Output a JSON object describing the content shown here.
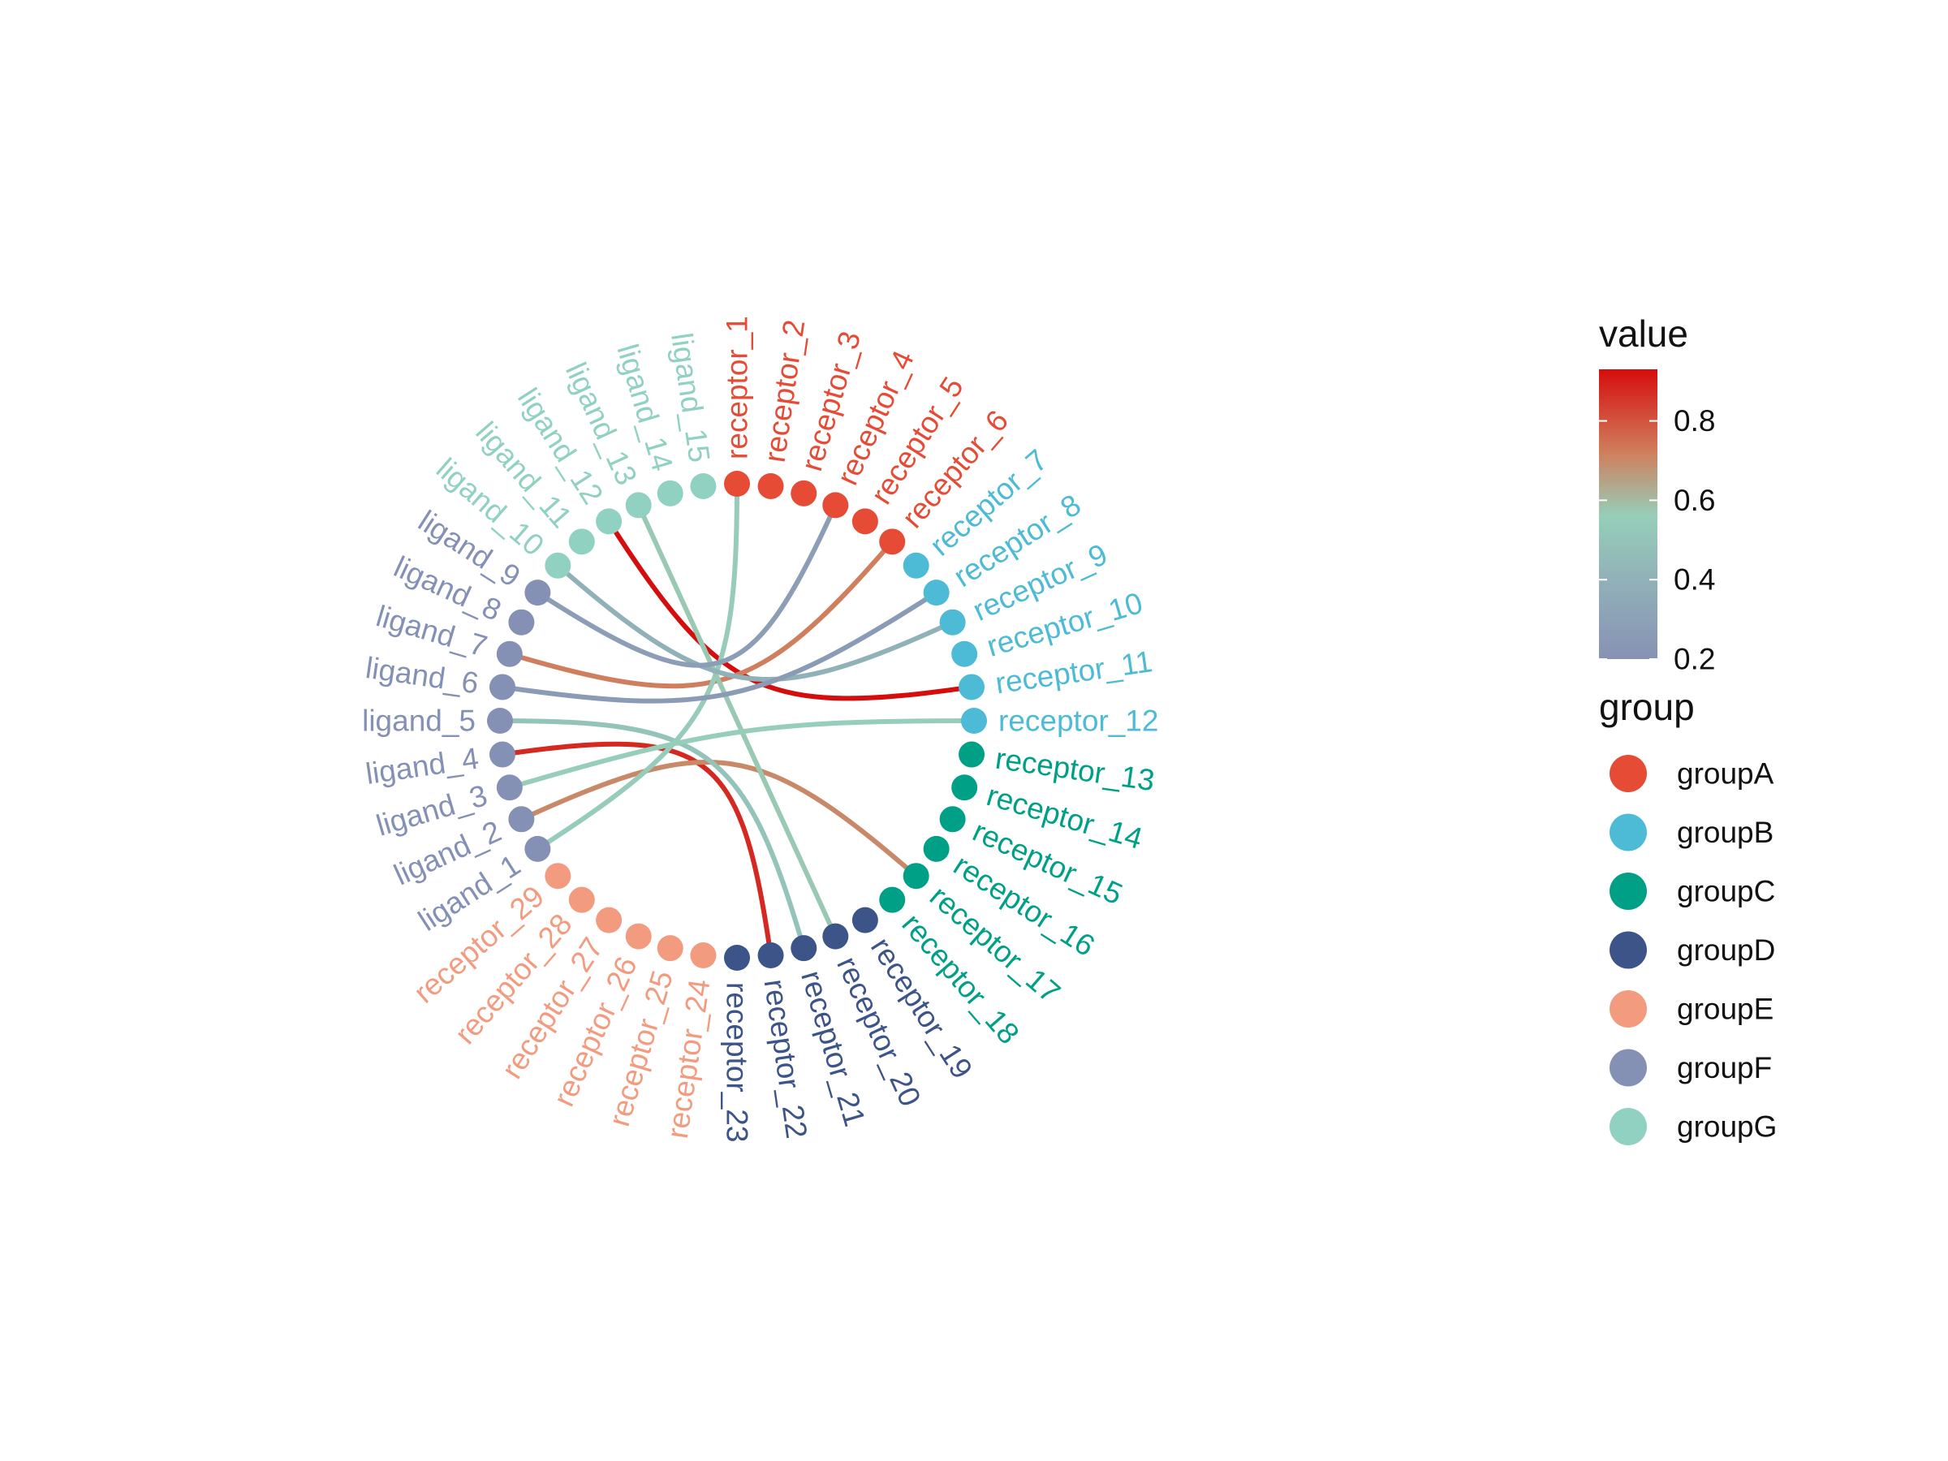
{
  "chart_data": {
    "type": "network",
    "layout": "circular",
    "nodes": [
      {
        "name": "receptor_1",
        "group": "groupA"
      },
      {
        "name": "receptor_2",
        "group": "groupA"
      },
      {
        "name": "receptor_3",
        "group": "groupA"
      },
      {
        "name": "receptor_4",
        "group": "groupA"
      },
      {
        "name": "receptor_5",
        "group": "groupA"
      },
      {
        "name": "receptor_6",
        "group": "groupA"
      },
      {
        "name": "receptor_7",
        "group": "groupB"
      },
      {
        "name": "receptor_8",
        "group": "groupB"
      },
      {
        "name": "receptor_9",
        "group": "groupB"
      },
      {
        "name": "receptor_10",
        "group": "groupB"
      },
      {
        "name": "receptor_11",
        "group": "groupB"
      },
      {
        "name": "receptor_12",
        "group": "groupB"
      },
      {
        "name": "receptor_13",
        "group": "groupC"
      },
      {
        "name": "receptor_14",
        "group": "groupC"
      },
      {
        "name": "receptor_15",
        "group": "groupC"
      },
      {
        "name": "receptor_16",
        "group": "groupC"
      },
      {
        "name": "receptor_17",
        "group": "groupC"
      },
      {
        "name": "receptor_18",
        "group": "groupC"
      },
      {
        "name": "receptor_19",
        "group": "groupD"
      },
      {
        "name": "receptor_20",
        "group": "groupD"
      },
      {
        "name": "receptor_21",
        "group": "groupD"
      },
      {
        "name": "receptor_22",
        "group": "groupD"
      },
      {
        "name": "receptor_23",
        "group": "groupD"
      },
      {
        "name": "receptor_24",
        "group": "groupE"
      },
      {
        "name": "receptor_25",
        "group": "groupE"
      },
      {
        "name": "receptor_26",
        "group": "groupE"
      },
      {
        "name": "receptor_27",
        "group": "groupE"
      },
      {
        "name": "receptor_28",
        "group": "groupE"
      },
      {
        "name": "receptor_29",
        "group": "groupE"
      },
      {
        "name": "ligand_1",
        "group": "groupF"
      },
      {
        "name": "ligand_2",
        "group": "groupF"
      },
      {
        "name": "ligand_3",
        "group": "groupF"
      },
      {
        "name": "ligand_4",
        "group": "groupF"
      },
      {
        "name": "ligand_5",
        "group": "groupF"
      },
      {
        "name": "ligand_6",
        "group": "groupF"
      },
      {
        "name": "ligand_7",
        "group": "groupF"
      },
      {
        "name": "ligand_8",
        "group": "groupF"
      },
      {
        "name": "ligand_9",
        "group": "groupF"
      },
      {
        "name": "ligand_10",
        "group": "groupG"
      },
      {
        "name": "ligand_11",
        "group": "groupG"
      },
      {
        "name": "ligand_12",
        "group": "groupG"
      },
      {
        "name": "ligand_13",
        "group": "groupG"
      },
      {
        "name": "ligand_14",
        "group": "groupG"
      },
      {
        "name": "ligand_15",
        "group": "groupG"
      }
    ],
    "edges": [
      {
        "from": "ligand_12",
        "to": "receptor_11",
        "value": 0.93
      },
      {
        "from": "ligand_4",
        "to": "receptor_22",
        "value": 0.88
      },
      {
        "from": "ligand_7",
        "to": "receptor_6",
        "value": 0.72
      },
      {
        "from": "ligand_2",
        "to": "receptor_17",
        "value": 0.7
      },
      {
        "from": "ligand_5",
        "to": "receptor_21",
        "value": 0.5
      },
      {
        "from": "ligand_1",
        "to": "receptor_1",
        "value": 0.55
      },
      {
        "from": "ligand_13",
        "to": "receptor_20",
        "value": 0.57
      },
      {
        "from": "ligand_3",
        "to": "receptor_12",
        "value": 0.56
      },
      {
        "from": "ligand_10",
        "to": "receptor_9",
        "value": 0.4
      },
      {
        "from": "ligand_9",
        "to": "receptor_4",
        "value": 0.28
      },
      {
        "from": "ligand_6",
        "to": "receptor_8",
        "value": 0.26
      }
    ],
    "value_scale": {
      "title": "value",
      "min": 0.2,
      "max": 0.93,
      "ticks": [
        "0.2",
        "0.4",
        "0.6",
        "0.8"
      ],
      "stops": [
        {
          "v": 0.2,
          "color": "#8792b4"
        },
        {
          "v": 0.4,
          "color": "#91b1b8"
        },
        {
          "v": 0.56,
          "color": "#96ceb9"
        },
        {
          "v": 0.72,
          "color": "#cf7f5d"
        },
        {
          "v": 0.93,
          "color": "#d50d0d"
        }
      ]
    },
    "group_legend": {
      "title": "group",
      "groups": [
        {
          "name": "groupA",
          "color": "#e64b35"
        },
        {
          "name": "groupB",
          "color": "#4dbbd5"
        },
        {
          "name": "groupC",
          "color": "#00a087"
        },
        {
          "name": "groupD",
          "color": "#3c5488"
        },
        {
          "name": "groupE",
          "color": "#f39b7f"
        },
        {
          "name": "groupF",
          "color": "#8491b4"
        },
        {
          "name": "groupG",
          "color": "#91d1c2"
        }
      ]
    }
  }
}
